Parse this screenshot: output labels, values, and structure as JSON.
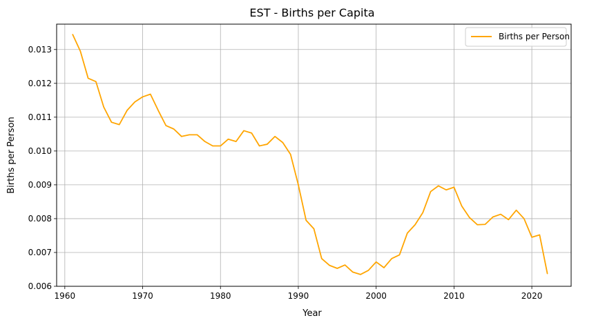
{
  "chart_data": {
    "type": "line",
    "title": "EST - Births per Capita",
    "xlabel": "Year",
    "ylabel": "Births per Person",
    "xlim": [
      1958.95,
      2025.05
    ],
    "ylim": [
      0.006,
      0.01375
    ],
    "x_ticks": [
      1960,
      1970,
      1980,
      1990,
      2000,
      2010,
      2020
    ],
    "x_tick_labels": [
      "1960",
      "1970",
      "1980",
      "1990",
      "2000",
      "2010",
      "2020"
    ],
    "y_ticks": [
      0.006,
      0.007,
      0.008,
      0.009,
      0.01,
      0.011,
      0.012,
      0.013
    ],
    "y_tick_labels": [
      "0.006",
      "0.007",
      "0.008",
      "0.009",
      "0.010",
      "0.011",
      "0.012",
      "0.013"
    ],
    "grid": true,
    "legend_position": "top-right",
    "series": [
      {
        "name": "Births per Person",
        "color": "#ffa500",
        "x": [
          1961,
          1962,
          1963,
          1964,
          1965,
          1966,
          1967,
          1968,
          1969,
          1970,
          1971,
          1972,
          1973,
          1974,
          1975,
          1976,
          1977,
          1978,
          1979,
          1980,
          1981,
          1982,
          1983,
          1984,
          1985,
          1986,
          1987,
          1988,
          1989,
          1990,
          1991,
          1992,
          1993,
          1994,
          1995,
          1996,
          1997,
          1998,
          1999,
          2000,
          2001,
          2002,
          2003,
          2004,
          2005,
          2006,
          2007,
          2008,
          2009,
          2010,
          2011,
          2012,
          2013,
          2014,
          2015,
          2016,
          2017,
          2018,
          2019,
          2020,
          2021,
          2022
        ],
        "values": [
          0.01345,
          0.01295,
          0.01215,
          0.01205,
          0.0113,
          0.01085,
          0.01078,
          0.0112,
          0.01145,
          0.0116,
          0.01168,
          0.0112,
          0.01075,
          0.01065,
          0.01043,
          0.01048,
          0.01048,
          0.01028,
          0.01015,
          0.01015,
          0.01035,
          0.01028,
          0.0106,
          0.01053,
          0.01015,
          0.0102,
          0.01043,
          0.01025,
          0.0099,
          0.009,
          0.00795,
          0.0077,
          0.00682,
          0.00662,
          0.00653,
          0.00663,
          0.00642,
          0.00635,
          0.00647,
          0.00672,
          0.00655,
          0.00682,
          0.00693,
          0.00757,
          0.00782,
          0.00818,
          0.0088,
          0.00897,
          0.00885,
          0.00893,
          0.00837,
          0.00803,
          0.00782,
          0.00783,
          0.00805,
          0.00813,
          0.00797,
          0.00825,
          0.008,
          0.00745,
          0.00752,
          0.00637
        ]
      }
    ]
  }
}
